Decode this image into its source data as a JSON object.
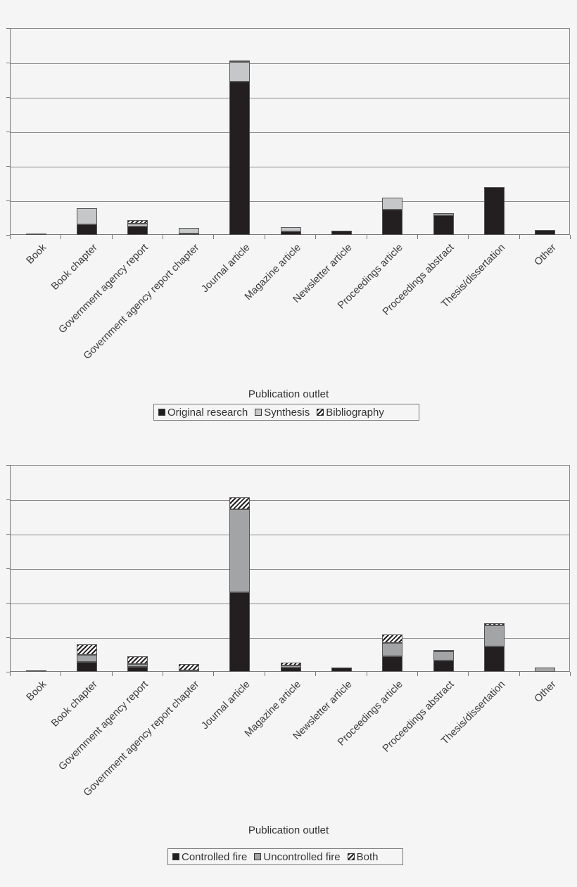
{
  "chart_data": [
    {
      "type": "bar",
      "stacked": true,
      "title": "",
      "xlabel": "Publication outlet",
      "ylabel": "",
      "y_tick_labels_visible": false,
      "ylim": [
        0,
        6
      ],
      "grid": true,
      "legend_position": "bottom",
      "categories": [
        "Book",
        "Book chapter",
        "Government agency report",
        "Government agency report chapter",
        "Journal article",
        "Magazine article",
        "Newsletter article",
        "Proceedings article",
        "Proceedings abstract",
        "Thesis/dissertation",
        "Other"
      ],
      "series": [
        {
          "name": "Original research",
          "color": "#231f20",
          "pattern": "solid",
          "values": [
            0.04,
            0.31,
            0.24,
            0.04,
            4.45,
            0.1,
            0.12,
            0.73,
            0.57,
            1.39,
            0.14
          ]
        },
        {
          "name": "Synthesis",
          "color": "#c6c7c9",
          "pattern": "solid",
          "values": [
            0,
            0.47,
            0.08,
            0.16,
            0.57,
            0.12,
            0,
            0.35,
            0.06,
            0,
            0
          ]
        },
        {
          "name": "Bibliography",
          "color": "#231f20",
          "pattern": "hatch",
          "values": [
            0,
            0,
            0.1,
            0,
            0.02,
            0,
            0,
            0,
            0,
            0,
            0
          ]
        }
      ]
    },
    {
      "type": "bar",
      "stacked": true,
      "title": "",
      "xlabel": "Publication outlet",
      "ylabel": "",
      "y_tick_labels_visible": false,
      "ylim": [
        0,
        6
      ],
      "grid": true,
      "legend_position": "bottom",
      "categories": [
        "Book",
        "Book chapter",
        "Government agency report",
        "Government agency report chapter",
        "Journal article",
        "Magazine article",
        "Newsletter article",
        "Proceedings article",
        "Proceedings abstract",
        "Thesis/dissertation",
        "Other"
      ],
      "series": [
        {
          "name": "Controlled fire",
          "color": "#231f20",
          "pattern": "solid",
          "values": [
            0.04,
            0.29,
            0.14,
            0.02,
            2.31,
            0.12,
            0.12,
            0.45,
            0.33,
            0.73,
            0
          ]
        },
        {
          "name": "Uncontrolled fire",
          "color": "#a3a4a6",
          "pattern": "solid",
          "values": [
            0,
            0.2,
            0.08,
            0,
            2.41,
            0.06,
            0,
            0.39,
            0.27,
            0.61,
            0.12
          ]
        },
        {
          "name": "Both",
          "color": "#231f20",
          "pattern": "hatch",
          "values": [
            0,
            0.31,
            0.22,
            0.18,
            0.35,
            0.08,
            0,
            0.24,
            0.04,
            0.06,
            0
          ]
        }
      ]
    }
  ],
  "charts": [
    {
      "axis_title": "Publication outlet",
      "legend": [
        "Original research",
        "Synthesis",
        "Bibliography"
      ]
    },
    {
      "axis_title": "Publication outlet",
      "legend": [
        "Controlled fire",
        "Uncontrolled fire",
        "Both"
      ]
    }
  ]
}
